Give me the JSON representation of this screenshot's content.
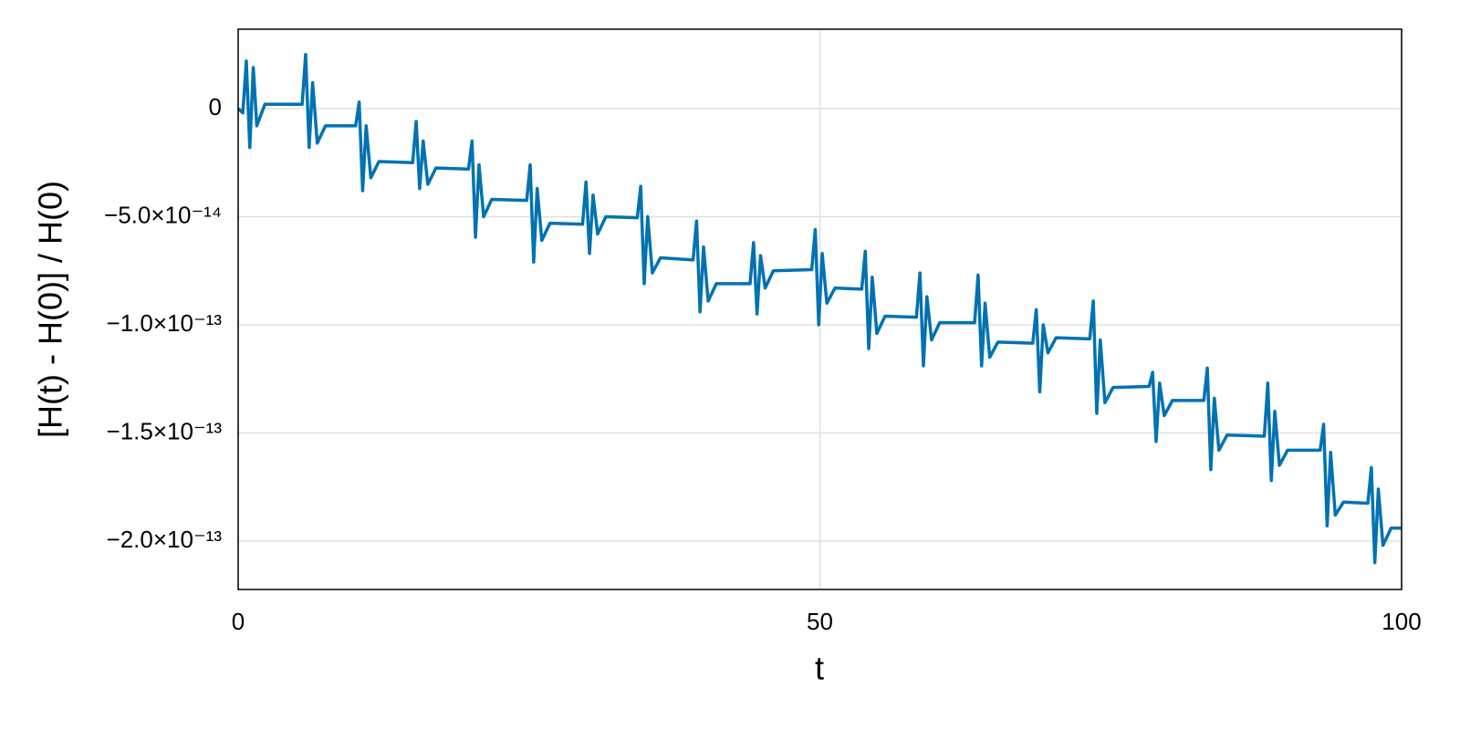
{
  "chart_data": {
    "type": "line",
    "xlabel": "t",
    "ylabel": "[H(t) - H(0)] / H(0)",
    "xlim": [
      0,
      100
    ],
    "ylim": [
      -2.224e-13,
      3.67e-14
    ],
    "xticks": [
      0,
      50,
      100
    ],
    "yticks": [
      {
        "value": -2e-13,
        "label": "−2.0×10⁻¹³"
      },
      {
        "value": -1.5e-13,
        "label": "−1.5×10⁻¹³"
      },
      {
        "value": -1e-13,
        "label": "−1.0×10⁻¹³"
      },
      {
        "value": -5e-14,
        "label": "−5.0×10⁻¹⁴"
      },
      0
    ],
    "grid": true,
    "series": [
      {
        "color": "#0072b2",
        "x": [
          0,
          0.4,
          0.7,
          1.0,
          1.3,
          1.6,
          2.3,
          5.3,
          5.5,
          5.8,
          6.1,
          6.4,
          6.8,
          7.5,
          10.1,
          10.4,
          10.7,
          11.0,
          11.4,
          12.1,
          15.0,
          15.3,
          15.6,
          15.9,
          16.3,
          17.0,
          19.8,
          20.1,
          20.4,
          20.7,
          21.1,
          21.8,
          24.8,
          25.1,
          25.4,
          25.7,
          26.1,
          26.8,
          29.6,
          29.9,
          30.2,
          30.5,
          30.9,
          31.6,
          34.3,
          34.6,
          34.9,
          35.2,
          35.6,
          36.3,
          39.1,
          39.4,
          39.7,
          40.0,
          40.4,
          41.1,
          44.0,
          44.3,
          44.6,
          44.9,
          45.3,
          46.0,
          49.3,
          49.6,
          49.9,
          50.2,
          50.6,
          51.3,
          53.6,
          53.9,
          54.2,
          54.5,
          54.9,
          55.6,
          58.3,
          58.6,
          58.9,
          59.2,
          59.6,
          60.3,
          63.3,
          63.6,
          63.9,
          64.2,
          64.6,
          65.3,
          68.3,
          68.6,
          68.9,
          69.2,
          69.6,
          70.3,
          73.2,
          73.5,
          73.8,
          74.1,
          74.5,
          75.2,
          78.3,
          78.6,
          78.9,
          79.2,
          79.6,
          80.3,
          83.0,
          83.3,
          83.6,
          83.9,
          84.3,
          85.0,
          88.2,
          88.5,
          88.8,
          89.1,
          89.5,
          90.2,
          93.0,
          93.3,
          93.6,
          93.9,
          94.3,
          95.0,
          97.1,
          97.4,
          97.7,
          98.0,
          98.4,
          99.1,
          100
        ],
        "values": [
          0,
          -2e-15,
          2.2e-14,
          -1.8e-14,
          1.9e-14,
          -8e-15,
          2e-15,
          2e-15,
          2e-15,
          2.5e-14,
          -1.8e-14,
          1.2e-14,
          -1.6e-14,
          -8e-15,
          -8e-15,
          3e-15,
          -3.8e-14,
          -8e-15,
          -3.2e-14,
          -2.45e-14,
          -2.5e-14,
          -6e-15,
          -3.7e-14,
          -1.5e-14,
          -3.5e-14,
          -2.75e-14,
          -2.8e-14,
          -1.5e-14,
          -5.95e-14,
          -2.6e-14,
          -5e-14,
          -4.2e-14,
          -4.25e-14,
          -2.6e-14,
          -7.1e-14,
          -3.7e-14,
          -6.1e-14,
          -5.3e-14,
          -5.35e-14,
          -3.4e-14,
          -6.7e-14,
          -4e-14,
          -5.8e-14,
          -5e-14,
          -5.05e-14,
          -3.6e-14,
          -8.1e-14,
          -5e-14,
          -7.6e-14,
          -6.9e-14,
          -7e-14,
          -5.2e-14,
          -9.4e-14,
          -6.4e-14,
          -8.9e-14,
          -8.1e-14,
          -8.1e-14,
          -6.2e-14,
          -9.5e-14,
          -6.8e-14,
          -8.3e-14,
          -7.5e-14,
          -7.45e-14,
          -5.6e-14,
          -1e-13,
          -6.7e-14,
          -9e-14,
          -8.3e-14,
          -8.35e-14,
          -6.6e-14,
          -1.11e-13,
          -7.8e-14,
          -1.04e-13,
          -9.6e-14,
          -9.65e-14,
          -7.6e-14,
          -1.19e-13,
          -8.7e-14,
          -1.07e-13,
          -9.9e-14,
          -9.9e-14,
          -7.7e-14,
          -1.19e-13,
          -9e-14,
          -1.15e-13,
          -1.08e-13,
          -1.085e-13,
          -9.3e-14,
          -1.31e-13,
          -1e-13,
          -1.13e-13,
          -1.06e-13,
          -1.065e-13,
          -8.9e-14,
          -1.41e-13,
          -1.07e-13,
          -1.36e-13,
          -1.29e-13,
          -1.285e-13,
          -1.22e-13,
          -1.54e-13,
          -1.27e-13,
          -1.42e-13,
          -1.35e-13,
          -1.35e-13,
          -1.2e-13,
          -1.67e-13,
          -1.34e-13,
          -1.58e-13,
          -1.51e-13,
          -1.515e-13,
          -1.27e-13,
          -1.72e-13,
          -1.4e-13,
          -1.65e-13,
          -1.58e-13,
          -1.58e-13,
          -1.46e-13,
          -1.93e-13,
          -1.59e-13,
          -1.88e-13,
          -1.82e-13,
          -1.825e-13,
          -1.66e-13,
          -2.1e-13,
          -1.76e-13,
          -2.02e-13,
          -1.94e-13,
          -1.94e-13
        ]
      }
    ]
  }
}
